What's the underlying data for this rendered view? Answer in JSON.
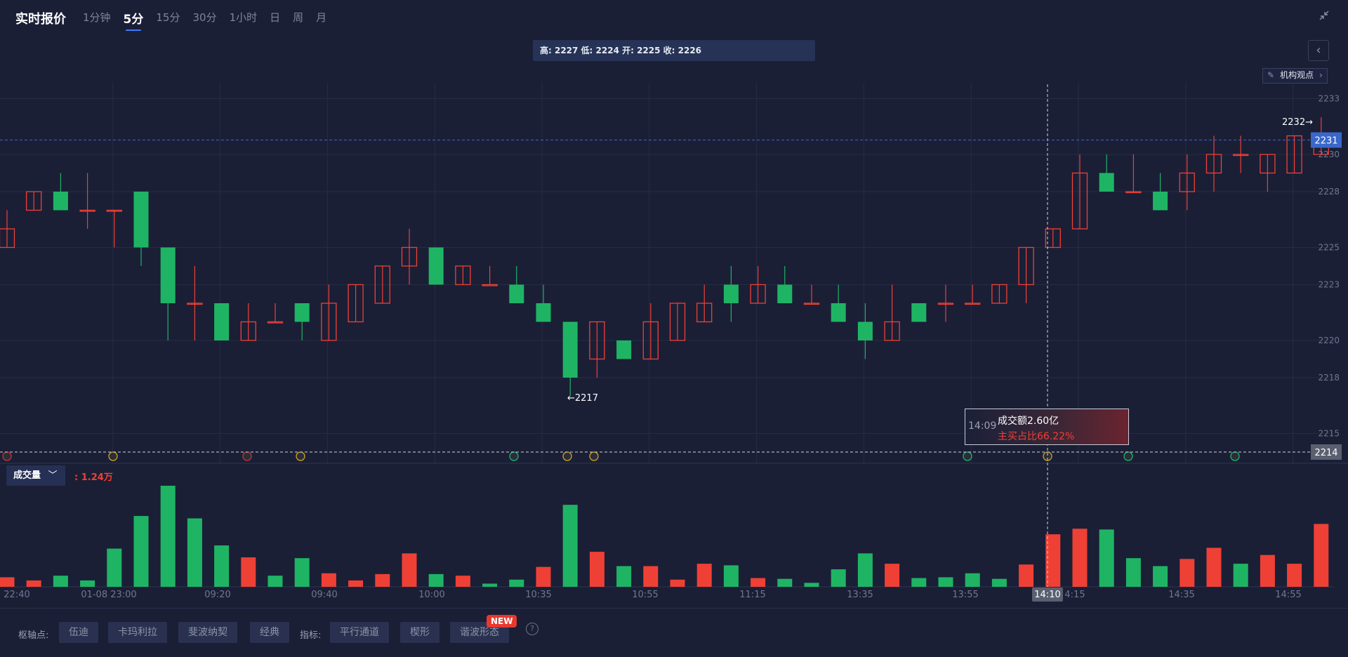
{
  "header": {
    "title": "实时报价",
    "tabs": [
      "1分钟",
      "5分",
      "15分",
      "30分",
      "1小时",
      "日",
      "周",
      "月"
    ],
    "active_tab": "5分",
    "shrink_icon": "shrink-arrows-icon"
  },
  "ohlc_bar": "高: 2227 低: 2224 开: 2225 收: 2226",
  "collapse_icon": "chevron-left-icon",
  "institution_button": {
    "icon": "chart-note-icon",
    "label": "机构观点"
  },
  "volume": {
    "selector_label": "成交量",
    "value": ": 1.24万"
  },
  "tooltip": {
    "time": "14:09",
    "turnover": "成交额2.60亿",
    "buy_ratio": "主买占比66.22%"
  },
  "bottom": {
    "pivot_label": "枢轴点:",
    "pivot_buttons": [
      "伍迪",
      "卡玛利拉",
      "斐波纳契",
      "经典"
    ],
    "indicator_label": "指标:",
    "indicator_buttons": [
      "平行通道",
      "楔形",
      "谐波形态"
    ],
    "new_badge": "NEW",
    "help_icon": "?"
  },
  "colors": {
    "up": "#ef4035",
    "down": "#1fb464",
    "background": "#1a1f36",
    "accent": "#3d7bff"
  },
  "chart_data": {
    "type": "candlestick",
    "y_axis_ticks": [
      2233,
      2230,
      2228,
      2225,
      2223,
      2220,
      2218,
      2215
    ],
    "ylim": [
      2214,
      2234
    ],
    "x_labels": [
      "22:40",
      "01-08 23:00",
      "09:20",
      "09:40",
      "10:00",
      "10:35",
      "10:55",
      "11:15",
      "13:35",
      "13:55",
      "14:10",
      "4:15",
      "14:35",
      "14:55"
    ],
    "last_price": 2231,
    "crosshair_price": 2214,
    "crosshair_time": "14:10",
    "high_marker": "2232",
    "low_marker": "2217",
    "candles": [
      {
        "o": 2225,
        "h": 2227,
        "l": 2225,
        "c": 2226
      },
      {
        "o": 2227,
        "h": 2228,
        "l": 2227,
        "c": 2228
      },
      {
        "o": 2228,
        "h": 2229,
        "l": 2227,
        "c": 2227
      },
      {
        "o": 2227,
        "h": 2229,
        "l": 2226,
        "c": 2227
      },
      {
        "o": 2227,
        "h": 2227,
        "l": 2225,
        "c": 2227
      },
      {
        "o": 2228,
        "h": 2228,
        "l": 2224,
        "c": 2225
      },
      {
        "o": 2225,
        "h": 2225,
        "l": 2220,
        "c": 2222
      },
      {
        "o": 2222,
        "h": 2224,
        "l": 2220,
        "c": 2222
      },
      {
        "o": 2222,
        "h": 2222,
        "l": 2220,
        "c": 2220
      },
      {
        "o": 2220,
        "h": 2222,
        "l": 2220,
        "c": 2221
      },
      {
        "o": 2221,
        "h": 2222,
        "l": 2221,
        "c": 2221
      },
      {
        "o": 2222,
        "h": 2222,
        "l": 2220,
        "c": 2221
      },
      {
        "o": 2220,
        "h": 2223,
        "l": 2220,
        "c": 2222
      },
      {
        "o": 2221,
        "h": 2223,
        "l": 2221,
        "c": 2223
      },
      {
        "o": 2222,
        "h": 2224,
        "l": 2222,
        "c": 2224
      },
      {
        "o": 2224,
        "h": 2226,
        "l": 2223,
        "c": 2225
      },
      {
        "o": 2225,
        "h": 2225,
        "l": 2223,
        "c": 2223
      },
      {
        "o": 2223,
        "h": 2224,
        "l": 2223,
        "c": 2224
      },
      {
        "o": 2223,
        "h": 2224,
        "l": 2223,
        "c": 2223
      },
      {
        "o": 2223,
        "h": 2224,
        "l": 2222,
        "c": 2222
      },
      {
        "o": 2222,
        "h": 2223,
        "l": 2221,
        "c": 2221
      },
      {
        "o": 2221,
        "h": 2221,
        "l": 2217,
        "c": 2218
      },
      {
        "o": 2219,
        "h": 2221,
        "l": 2218,
        "c": 2221
      },
      {
        "o": 2220,
        "h": 2220,
        "l": 2219,
        "c": 2219
      },
      {
        "o": 2219,
        "h": 2222,
        "l": 2219,
        "c": 2221
      },
      {
        "o": 2220,
        "h": 2222,
        "l": 2220,
        "c": 2222
      },
      {
        "o": 2221,
        "h": 2223,
        "l": 2221,
        "c": 2222
      },
      {
        "o": 2223,
        "h": 2224,
        "l": 2221,
        "c": 2222
      },
      {
        "o": 2222,
        "h": 2224,
        "l": 2222,
        "c": 2223
      },
      {
        "o": 2223,
        "h": 2224,
        "l": 2222,
        "c": 2222
      },
      {
        "o": 2222,
        "h": 2223,
        "l": 2222,
        "c": 2222
      },
      {
        "o": 2222,
        "h": 2223,
        "l": 2221,
        "c": 2221
      },
      {
        "o": 2221,
        "h": 2222,
        "l": 2219,
        "c": 2220
      },
      {
        "o": 2220,
        "h": 2223,
        "l": 2220,
        "c": 2221
      },
      {
        "o": 2222,
        "h": 2222,
        "l": 2221,
        "c": 2221
      },
      {
        "o": 2222,
        "h": 2223,
        "l": 2221,
        "c": 2222
      },
      {
        "o": 2222,
        "h": 2223,
        "l": 2222,
        "c": 2222
      },
      {
        "o": 2222,
        "h": 2223,
        "l": 2222,
        "c": 2223
      },
      {
        "o": 2223,
        "h": 2225,
        "l": 2222,
        "c": 2225
      },
      {
        "o": 2225,
        "h": 2226,
        "l": 2225,
        "c": 2226
      },
      {
        "o": 2226,
        "h": 2230,
        "l": 2226,
        "c": 2229
      },
      {
        "o": 2229,
        "h": 2230,
        "l": 2228,
        "c": 2228
      },
      {
        "o": 2228,
        "h": 2230,
        "l": 2228,
        "c": 2228
      },
      {
        "o": 2228,
        "h": 2229,
        "l": 2227,
        "c": 2227
      },
      {
        "o": 2228,
        "h": 2230,
        "l": 2227,
        "c": 2229
      },
      {
        "o": 2229,
        "h": 2231,
        "l": 2228,
        "c": 2230
      },
      {
        "o": 2230,
        "h": 2231,
        "l": 2229,
        "c": 2230
      },
      {
        "o": 2229,
        "h": 2230,
        "l": 2228,
        "c": 2230
      },
      {
        "o": 2229,
        "h": 2231,
        "l": 2229,
        "c": 2231
      },
      {
        "o": 2230,
        "h": 2232,
        "l": 2230,
        "c": 2231
      }
    ],
    "volumes": [
      0.12,
      0.08,
      0.14,
      0.08,
      0.48,
      0.89,
      1.27,
      0.86,
      0.52,
      0.37,
      0.14,
      0.36,
      0.17,
      0.08,
      0.16,
      0.42,
      0.16,
      0.14,
      0.04,
      0.09,
      0.25,
      1.03,
      0.44,
      0.26,
      0.26,
      0.09,
      0.29,
      0.27,
      0.11,
      0.1,
      0.05,
      0.22,
      0.42,
      0.29,
      0.11,
      0.12,
      0.17,
      0.1,
      0.28,
      0.66,
      0.73,
      0.72,
      0.36,
      0.26,
      0.35,
      0.49,
      0.29,
      0.4,
      0.29,
      0.79
    ],
    "volume_colors": [
      "up",
      "up",
      "down",
      "down",
      "down",
      "down",
      "down",
      "down",
      "down",
      "up",
      "down",
      "down",
      "up",
      "up",
      "up",
      "up",
      "down",
      "up",
      "down",
      "down",
      "up",
      "down",
      "up",
      "down",
      "up",
      "up",
      "up",
      "down",
      "up",
      "down",
      "down",
      "down",
      "down",
      "up",
      "down",
      "down",
      "down",
      "down",
      "up",
      "up",
      "up",
      "down",
      "down",
      "down",
      "up",
      "up",
      "down",
      "up",
      "up",
      "up"
    ]
  }
}
